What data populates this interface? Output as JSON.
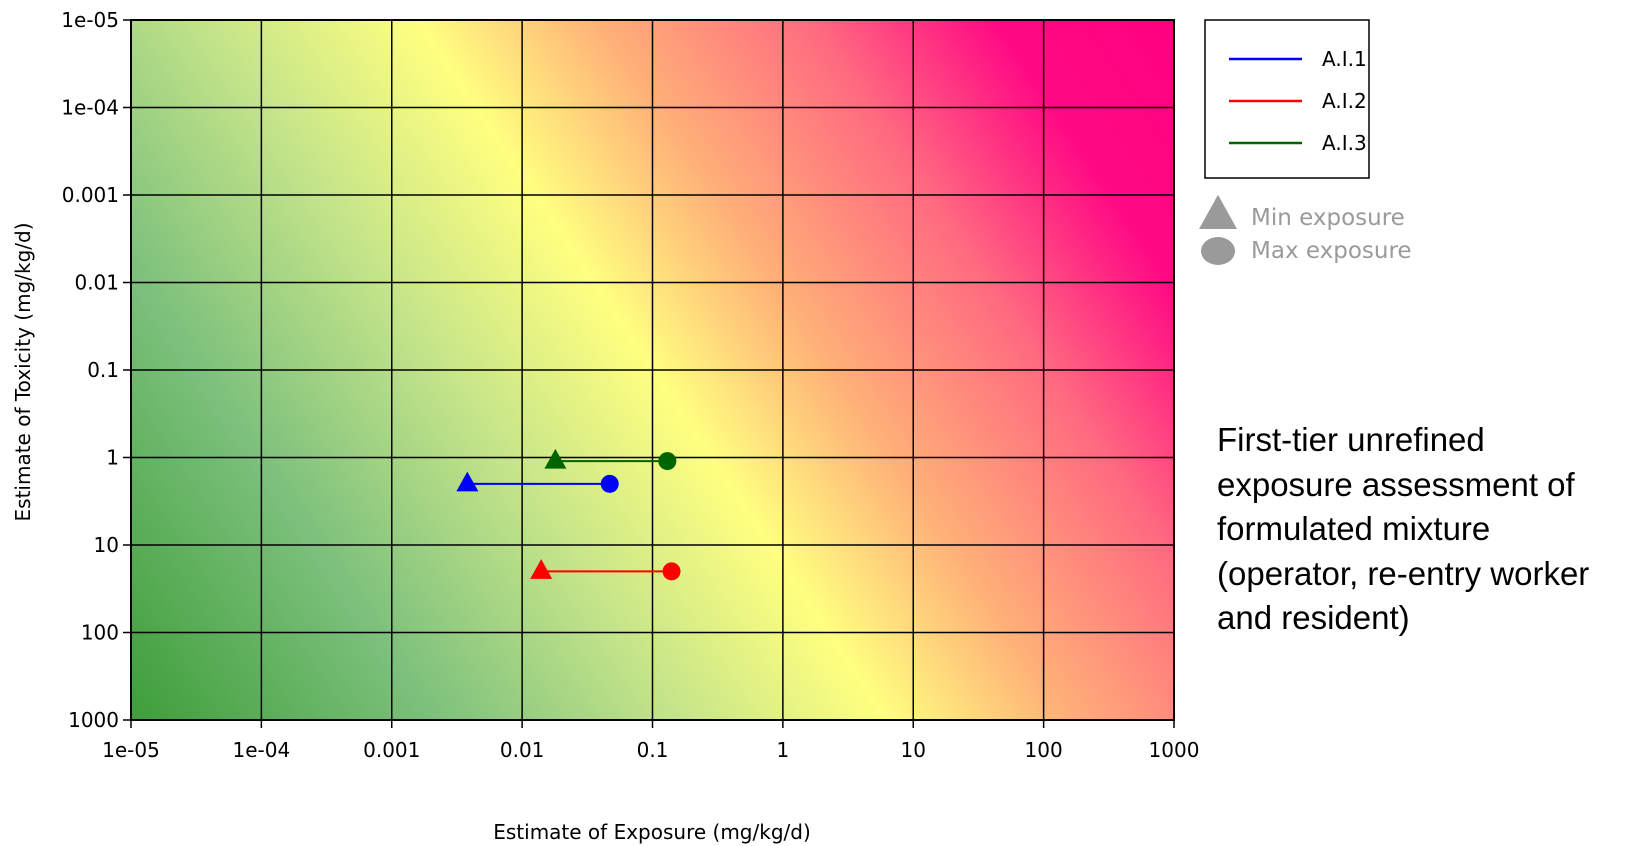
{
  "chart_data": {
    "type": "scatter",
    "xlabel": "Estimate of Exposure (mg/kg/d)",
    "ylabel": "Estimate of Toxicity (mg/kg/d)",
    "x_scale": "log",
    "y_scale": "log",
    "y_axis_inverted": true,
    "xlim": [
      1e-05,
      1000
    ],
    "ylim": [
      1e-05,
      1000
    ],
    "x_ticks": [
      "1e-05",
      "1e-04",
      "0.001",
      "0.01",
      "0.1",
      "1",
      "10",
      "100",
      "1000"
    ],
    "y_ticks": [
      "1e-05",
      "1e-04",
      "0.001",
      "0.01",
      "0.1",
      "1",
      "10",
      "100",
      "1000"
    ],
    "grid": true,
    "background": "diagonal gradient from green (low exposure, high toxicity value) through yellow to magenta (high exposure, low toxicity value)",
    "legend_position": "right",
    "series": [
      {
        "name": "A.I.1",
        "color": "#0000ff",
        "toxicity": 2,
        "min_exposure": 0.0038,
        "max_exposure": 0.047
      },
      {
        "name": "A.I.2",
        "color": "#ff0000",
        "toxicity": 20,
        "min_exposure": 0.014,
        "max_exposure": 0.14
      },
      {
        "name": "A.I.3",
        "color": "#006400",
        "toxicity": 1.1,
        "min_exposure": 0.018,
        "max_exposure": 0.13
      }
    ],
    "marker_legend": [
      {
        "shape": "triangle",
        "label": "Min exposure"
      },
      {
        "shape": "circle",
        "label": "Max exposure"
      }
    ]
  },
  "note_lines": [
    "First-tier unrefined",
    "exposure assessment of",
    "formulated mixture",
    "(operator, re-entry worker",
    "and resident)"
  ]
}
